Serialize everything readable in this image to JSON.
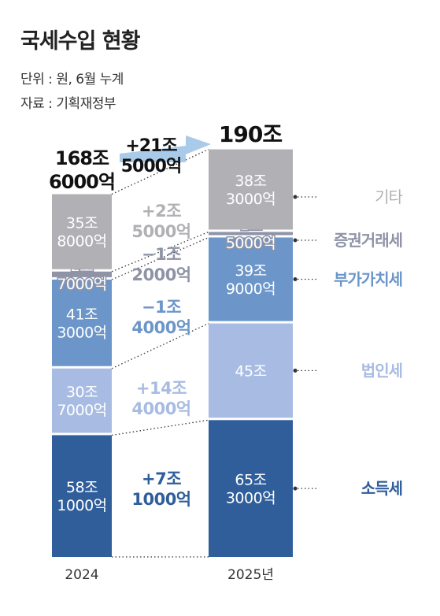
{
  "header": {
    "title": "국세수입 현황",
    "unit": "단위 : 원, 6월 누계",
    "source": "자료 : 기획재정부"
  },
  "colors": {
    "other": "#b1b1b5",
    "securities": "#8e93a6",
    "vat": "#6c96c9",
    "corporate": "#a8bce3",
    "income": "#2f5e9b",
    "arrow": "#a9cbe9"
  },
  "chart_data": {
    "type": "bar",
    "stacked": true,
    "categories": [
      "2024",
      "2025년"
    ],
    "totals": [
      {
        "value_trillion": 168.6,
        "label_line1": "168조",
        "label_line2": "6000억"
      },
      {
        "value_trillion": 190.0,
        "label_line1": "190조",
        "label_line2": ""
      }
    ],
    "total_change": {
      "line1": "+21조",
      "line2": "5000억"
    },
    "series": [
      {
        "name": "소득세",
        "key": "income",
        "color": "#2f5e9b",
        "label_color": "#ffffff",
        "values": [
          58.1,
          65.3
        ],
        "labels": [
          [
            "58조",
            "1000억"
          ],
          [
            "65조",
            "3000억"
          ]
        ],
        "change": [
          "+7조",
          "1000억"
        ],
        "change_color": "#2f5e9b"
      },
      {
        "name": "법인세",
        "key": "corporate",
        "color": "#a8bce3",
        "label_color": "#ffffff",
        "values": [
          30.7,
          45.0
        ],
        "labels": [
          [
            "30조",
            "7000억"
          ],
          [
            "45조",
            ""
          ]
        ],
        "change": [
          "+14조",
          "4000억"
        ],
        "change_color": "#a8bce3"
      },
      {
        "name": "부가가치세",
        "key": "vat",
        "color": "#6c96c9",
        "label_color": "#ffffff",
        "values": [
          41.3,
          39.9
        ],
        "labels": [
          [
            "41조",
            "3000억"
          ],
          [
            "39조",
            "9000억"
          ]
        ],
        "change": [
          "−1조",
          "4000억"
        ],
        "change_color": "#6c96c9"
      },
      {
        "name": "증권거래세",
        "key": "securities",
        "color": "#8e93a6",
        "label_color": "#ffffff",
        "values": [
          2.7,
          1.5
        ],
        "labels": [
          [
            "2조",
            "7000억"
          ],
          [
            "1조",
            "5000억"
          ]
        ],
        "change": [
          "−1조",
          "2000억"
        ],
        "change_color": "#8e93a6"
      },
      {
        "name": "기타",
        "key": "other",
        "color": "#b1b1b5",
        "label_color": "#ffffff",
        "values": [
          35.8,
          38.3
        ],
        "labels": [
          [
            "35조",
            "8000억"
          ],
          [
            "38조",
            "3000억"
          ]
        ],
        "change": [
          "+2조",
          "5000억"
        ],
        "change_color": "#b1b1b5"
      }
    ]
  }
}
